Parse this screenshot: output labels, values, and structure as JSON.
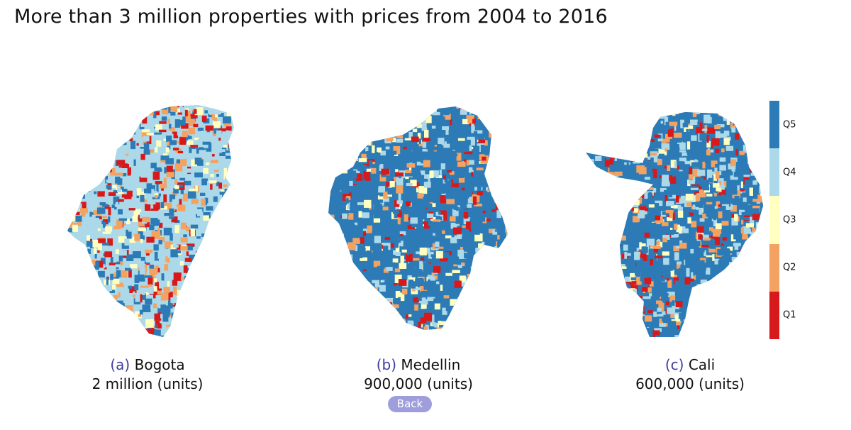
{
  "title": "More than 3 million properties with prices from 2004 to 2016",
  "colors": {
    "Q1": "#d7191c",
    "Q2": "#f4a261",
    "Q3": "#ffffbf",
    "Q4": "#abd9e9",
    "Q5": "#2c7bb6",
    "caption_tag": "#3c3c9e",
    "back_button": "#9e9edc"
  },
  "legend": {
    "items": [
      {
        "label": "Q5",
        "color": "#2c7bb6"
      },
      {
        "label": "Q4",
        "color": "#abd9e9"
      },
      {
        "label": "Q3",
        "color": "#ffffbf"
      },
      {
        "label": "Q2",
        "color": "#f4a261"
      },
      {
        "label": "Q1",
        "color": "#d7191c"
      }
    ]
  },
  "panels": [
    {
      "tag": "(a)",
      "city": "Bogota",
      "units": "2 million (units)"
    },
    {
      "tag": "(b)",
      "city": "Medellin",
      "units": "900,000 (units)"
    },
    {
      "tag": "(c)",
      "city": "Cali",
      "units": "600,000 (units)"
    }
  ],
  "back_label": "Back"
}
